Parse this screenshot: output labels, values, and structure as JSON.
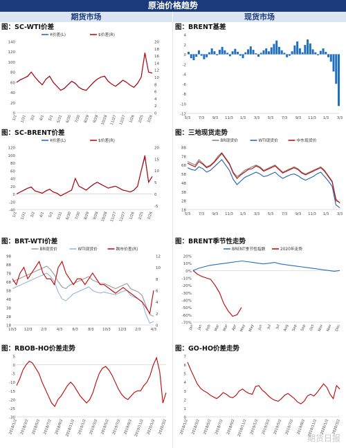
{
  "header": {
    "title": "原油价格趋势",
    "left": "期货市场",
    "right": "现货市场"
  },
  "chart_data": [
    {
      "id": "c1",
      "type": "line",
      "title": "图：SC-WTI价差",
      "yticks": [
        0,
        20,
        40,
        60,
        80,
        100,
        120,
        140
      ],
      "ylim": [
        0,
        140
      ],
      "y2ticks": [
        0,
        2,
        4,
        6,
        8,
        10,
        12,
        14,
        16,
        18,
        20
      ],
      "y2lim": [
        0,
        20
      ],
      "xticks": [
        "1/1",
        "1/31",
        "3/2",
        "4/1",
        "5/1",
        "5/31",
        "6/30",
        "7/30",
        "8/29",
        "9/28",
        "10/28",
        "11/27",
        "12/27",
        "1/26",
        "2/25",
        "3/26"
      ],
      "series": [
        {
          "name": "¥价差(L)",
          "color": "#1f5fb0",
          "axis": "left",
          "values": [
            60,
            65,
            68,
            72,
            80,
            70,
            62,
            55,
            66,
            72,
            60,
            52,
            44,
            48,
            55,
            62,
            58,
            50,
            46,
            44,
            52,
            60,
            66,
            70,
            72,
            62,
            56,
            52,
            58,
            64,
            60,
            54,
            50,
            58,
            70,
            118,
            80,
            78
          ]
        },
        {
          "name": "$价差(R)",
          "color": "#c00000",
          "axis": "right",
          "values": [
            8.5,
            9.2,
            9.7,
            10.2,
            11.4,
            10,
            8.8,
            7.8,
            9.4,
            10.2,
            8.5,
            7.4,
            6.3,
            6.8,
            7.8,
            8.8,
            8.2,
            7.1,
            6.5,
            6.3,
            7.4,
            8.5,
            9.4,
            10,
            10.2,
            8.8,
            8,
            7.4,
            8.2,
            9.1,
            8.5,
            7.7,
            7.1,
            8.2,
            10,
            16.8,
            11.4,
            11.1
          ]
        }
      ]
    },
    {
      "id": "c2",
      "type": "line",
      "title": "图：BRENT基差",
      "yticks": [
        4,
        2,
        0,
        -2,
        -4,
        -6,
        -8,
        -10,
        -12
      ],
      "ylim": [
        -12,
        4
      ],
      "xticks": [
        "5/3",
        "7/3",
        "9/3",
        "11/3",
        "1/3",
        "3/3",
        "5/3",
        "7/3",
        "9/3",
        "11/3",
        "1/3",
        "3/3"
      ],
      "series": [
        {
          "name": "BRENT基差",
          "color": "#1f6fbf",
          "axis": "left",
          "style": "bar",
          "values": [
            0.5,
            -0.8,
            -1.2,
            -0.5,
            0.8,
            -0.3,
            -1,
            -0.6,
            0.4,
            1.2,
            0.6,
            -0.2,
            0.9,
            1.5,
            0.8,
            0.3,
            -0.4,
            0.6,
            1.1,
            0.5,
            -0.3,
            -0.8,
            0.4,
            1,
            1.6,
            0.9,
            0.2,
            -0.5,
            0.3,
            0.8,
            1.2,
            0.6,
            1.4,
            2.1,
            2.8,
            1.5,
            0.8,
            0.3,
            -0.6,
            -0.3,
            0.6,
            1.8,
            2.6,
            1.2,
            0.4,
            1.9,
            3,
            2.2,
            1,
            0.4,
            -0.2,
            0.7,
            1.2,
            0.5,
            -0.6,
            -1.5,
            -3.5,
            -6,
            -10.5
          ]
        }
      ]
    },
    {
      "id": "c3",
      "type": "line",
      "title": "图：SC-BRENT价差",
      "yticks": [
        120,
        100,
        80,
        60,
        40,
        20,
        0,
        -20,
        -40
      ],
      "ylim": [
        -40,
        120
      ],
      "y2ticks": [
        20,
        15,
        10,
        5,
        0,
        -5
      ],
      "y2lim": [
        -6.67,
        20
      ],
      "xticks": [
        "1/1",
        "1/31",
        "3/2",
        "4/1",
        "5/1",
        "5/31",
        "6/30",
        "7/30",
        "8/29",
        "9/28",
        "10/28",
        "11/27",
        "12/27",
        "1/26",
        "2/25",
        "3/26"
      ],
      "series": [
        {
          "name": "¥价差(L)",
          "color": "#1f5fb0",
          "axis": "left",
          "values": [
            0,
            5,
            10,
            15,
            18,
            8,
            5,
            2,
            8,
            12,
            5,
            2,
            -5,
            0,
            5,
            10,
            40,
            20,
            15,
            10,
            18,
            25,
            30,
            25,
            20,
            15,
            18,
            20,
            15,
            10,
            8,
            5,
            10,
            20,
            60,
            95,
            30,
            45
          ]
        },
        {
          "name": "$价差(R)",
          "color": "#c00000",
          "axis": "right",
          "values": [
            0,
            0.8,
            1.6,
            2.4,
            2.9,
            1.3,
            0.8,
            0.3,
            1.3,
            2,
            0.8,
            0.3,
            -0.8,
            0,
            0.8,
            1.6,
            6.6,
            3.3,
            2.5,
            1.6,
            2.9,
            4.1,
            5,
            4.1,
            3.3,
            2.5,
            2.9,
            3.3,
            2.5,
            1.6,
            1.3,
            0.8,
            1.6,
            3.3,
            10,
            16.5,
            5,
            7.4
          ]
        }
      ]
    },
    {
      "id": "c4",
      "type": "line",
      "title": "图：三地现货走势",
      "yticks": [
        88,
        78,
        68,
        58,
        48,
        38,
        28,
        18
      ],
      "ylim": [
        18,
        88
      ],
      "xticks": [
        "5/3",
        "7/3",
        "9/3",
        "11/3",
        "1/3",
        "3/3",
        "5/3",
        "7/3",
        "9/3",
        "11/3",
        "1/3",
        "3/3"
      ],
      "series": [
        {
          "name": "BR现货价",
          "color": "#7f7f7f",
          "axis": "left",
          "values": [
            72,
            70,
            68,
            74,
            70,
            66,
            68,
            72,
            78,
            82,
            76,
            70,
            60,
            55,
            58,
            62,
            64,
            66,
            68,
            66,
            62,
            64,
            66,
            68,
            64,
            60,
            62,
            64,
            66,
            64,
            60,
            58,
            60,
            62,
            64,
            66,
            62,
            56,
            50,
            30,
            25
          ]
        },
        {
          "name": "WTI现货价",
          "color": "#1f5fb0",
          "axis": "left",
          "values": [
            65,
            63,
            62,
            66,
            64,
            60,
            62,
            66,
            70,
            74,
            68,
            62,
            52,
            46,
            50,
            54,
            56,
            58,
            60,
            58,
            55,
            56,
            58,
            60,
            56,
            53,
            55,
            57,
            58,
            56,
            53,
            51,
            53,
            55,
            58,
            60,
            55,
            50,
            44,
            23,
            20
          ]
        },
        {
          "name": "中东现货价",
          "color": "#c00000",
          "axis": "left",
          "values": [
            70,
            68,
            66,
            72,
            69,
            65,
            67,
            71,
            76,
            81,
            75,
            69,
            59,
            53,
            57,
            60,
            63,
            64,
            67,
            65,
            61,
            63,
            65,
            67,
            63,
            59,
            61,
            63,
            65,
            63,
            59,
            57,
            59,
            61,
            63,
            65,
            61,
            55,
            49,
            28,
            26
          ]
        }
      ]
    },
    {
      "id": "c5",
      "type": "line",
      "title": "图：BRT-WTI价差",
      "yticks": [
        98,
        88,
        78,
        68,
        58,
        48,
        38,
        28,
        18
      ],
      "ylim": [
        18,
        98
      ],
      "y2ticks": [
        12,
        10,
        8,
        6,
        4,
        2,
        0
      ],
      "y2lim": [
        0,
        12
      ],
      "xticks": [
        "10/3",
        "12/3",
        "2/3",
        "4/3",
        "6/3",
        "8/3",
        "10/3",
        "12/3",
        "2/3",
        "4/3"
      ],
      "series": [
        {
          "name": "BR现货价",
          "color": "#9a9a9a",
          "axis": "left",
          "values": [
            68,
            70,
            72,
            74,
            76,
            78,
            80,
            82,
            84,
            86,
            82,
            76,
            68,
            62,
            60,
            64,
            66,
            68,
            70,
            72,
            74,
            70,
            68,
            66,
            66,
            64,
            62,
            60,
            62,
            64,
            66,
            60,
            58,
            56,
            52,
            40,
            30,
            28
          ]
        },
        {
          "name": "WTI现货价",
          "color": "#8fb6e0",
          "axis": "left",
          "values": [
            60,
            62,
            64,
            66,
            68,
            70,
            72,
            74,
            76,
            78,
            74,
            68,
            56,
            48,
            46,
            50,
            54,
            56,
            58,
            60,
            62,
            58,
            56,
            55,
            56,
            55,
            54,
            53,
            55,
            57,
            58,
            52,
            50,
            48,
            44,
            30,
            20,
            22
          ]
        },
        {
          "name": "跨市价差(R)",
          "color": "#c00000",
          "axis": "right",
          "values": [
            8,
            7,
            9,
            10,
            8,
            9,
            10,
            11,
            9,
            8,
            8,
            7,
            10,
            11,
            9,
            8,
            7,
            8,
            8,
            7,
            8,
            9,
            8,
            7,
            7,
            6.5,
            6,
            5.5,
            6,
            6.5,
            6,
            5.5,
            5,
            4.5,
            4,
            3,
            2,
            6
          ]
        }
      ]
    },
    {
      "id": "c6",
      "type": "line",
      "title": "图：BRENT季节性走势",
      "yticks": [
        "20%",
        "10%",
        "0%",
        "-10%",
        "-20%",
        "-30%",
        "-40%",
        "-50%",
        "-60%",
        "-70%"
      ],
      "ylim": [
        -70,
        20
      ],
      "xticks": [
        "Jan",
        "Jan",
        "Feb",
        "Mar",
        "Mar",
        "Apr",
        "May",
        "May",
        "Jun",
        "Jul",
        "Jul",
        "Aug",
        "Sep",
        "Sep",
        "Oct",
        "Nov",
        "Nov",
        "Dec"
      ],
      "series": [
        {
          "name": "BRENT季节性指数",
          "color": "#1f6fbf",
          "axis": "left",
          "values": [
            0,
            3,
            5,
            7,
            8,
            9,
            10,
            11,
            12,
            13,
            12,
            11,
            10,
            9,
            10,
            11,
            9,
            8,
            7,
            6,
            5,
            4,
            3,
            2,
            1,
            0,
            -1,
            0
          ]
        },
        {
          "name": "2020年走势",
          "color": "#c00000",
          "axis": "left",
          "values": [
            0,
            -5,
            -8,
            -10,
            -12,
            -20,
            -30,
            -45,
            -55,
            -62,
            -60,
            -50
          ]
        }
      ]
    },
    {
      "id": "c7",
      "type": "line",
      "title": "图：RBOB-HO价差走势",
      "yticks": [
        5,
        0,
        -5,
        -10,
        -15,
        -20,
        -25,
        -30
      ],
      "ylim": [
        -30,
        5
      ],
      "xticks": [
        "2018/1/2",
        "2018/3/2",
        "2018/5/2",
        "2018/7/2",
        "2018/9/2",
        "2018/11/2",
        "2019/1/2",
        "2019/3/2",
        "2019/5/2",
        "2019/7/2",
        "2019/9/2",
        "2019/11/2",
        "2020/1/2",
        "2020/3/2"
      ],
      "series": [
        {
          "name": "RBOB-HO",
          "color": "#c00000",
          "axis": "left",
          "values": [
            -12,
            -8,
            -3,
            0,
            2,
            1,
            -2,
            -5,
            -10,
            -14,
            -18,
            -22,
            -24,
            -20,
            -18,
            -15,
            -12,
            -10,
            -12,
            -15,
            -18,
            -20,
            -22,
            -20,
            -16,
            -10,
            -5,
            -2,
            -1,
            -3,
            -6,
            -10,
            -14,
            -17,
            -19,
            -20,
            -18,
            -16,
            -15,
            -15,
            -12,
            -10,
            -6,
            0,
            4,
            -4,
            -22,
            -16
          ]
        }
      ]
    },
    {
      "id": "c8",
      "type": "line",
      "title": "图：GO-HO价差走势",
      "yticks": [
        7,
        6,
        5,
        4,
        3,
        2,
        1,
        0
      ],
      "ylim": [
        0,
        7
      ],
      "xticks": [
        "2018/1/2",
        "2018/3/2",
        "2018/5/2",
        "2018/7/2",
        "2018/9/2",
        "2018/11/2",
        "2019/1/2",
        "2019/3/2",
        "2019/5/2",
        "2019/7/2",
        "2019/9/2",
        "2019/11/2",
        "2020/1/2",
        "2020/3/2"
      ],
      "series": [
        {
          "name": "GO-HO",
          "color": "#c00000",
          "axis": "left",
          "values": [
            6.3,
            5.4,
            4.6,
            3.8,
            3.3,
            3,
            2.8,
            2.5,
            2.3,
            2.1,
            2.4,
            2.8,
            2.6,
            2.3,
            2.2,
            2.5,
            3,
            3.2,
            2.9,
            2.7,
            2.6,
            3.5,
            3.6,
            3.1,
            2.8,
            2.4,
            2.1,
            1.9,
            1.8,
            2.1,
            2.5,
            2.7,
            2.4,
            2.1,
            1.7,
            1.5,
            1.8,
            2.4,
            2.6,
            2.4,
            2.8,
            3.3,
            3.8,
            3.4,
            2.6,
            2.1,
            3.6,
            3.2
          ]
        }
      ]
    }
  ],
  "watermark": "期货日报"
}
